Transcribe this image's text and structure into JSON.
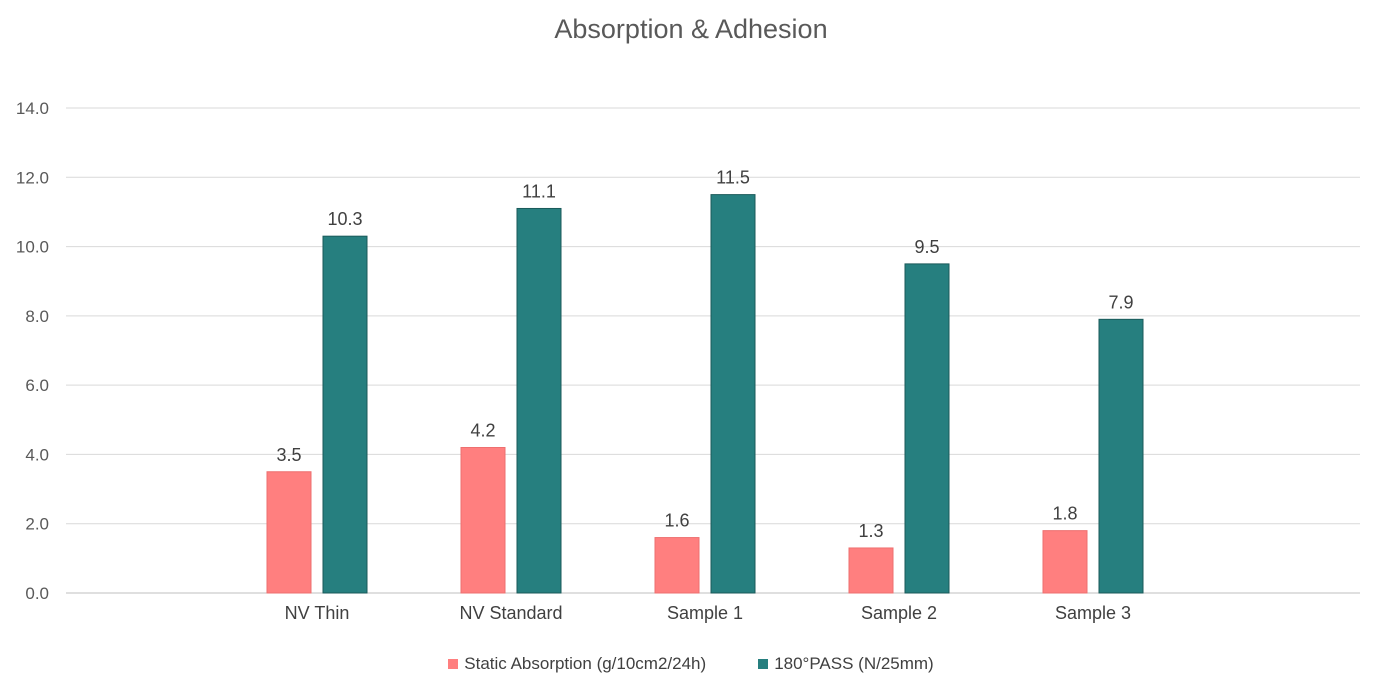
{
  "chart_data": {
    "type": "bar",
    "title": "Absorption & Adhesion",
    "categories": [
      "NV Thin",
      "NV Standard",
      "Sample 1",
      "Sample 2",
      "Sample 3"
    ],
    "series": [
      {
        "name": "Static Absorption  (g/10cm2/24h)",
        "color": "#ff7f7f",
        "values": [
          3.5,
          4.2,
          1.6,
          1.3,
          1.8
        ]
      },
      {
        "name": "180°PASS  (N/25mm)",
        "color": "#267f7f",
        "values": [
          10.3,
          11.1,
          11.5,
          9.5,
          7.9
        ]
      }
    ],
    "yticks": [
      "0.0",
      "2.0",
      "4.0",
      "6.0",
      "8.0",
      "10.0",
      "12.0",
      "14.0"
    ],
    "ylim": [
      0,
      14
    ],
    "xlabel": "",
    "ylabel": "",
    "grid": true,
    "legend": "bottom"
  }
}
